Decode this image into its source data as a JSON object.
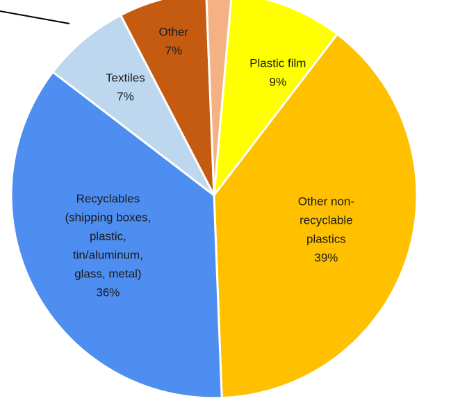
{
  "chart_data": {
    "type": "pie",
    "title": "",
    "slices": [
      {
        "label": "Plastic film",
        "value": 9,
        "value_label": "9%",
        "color": "#FFFF00"
      },
      {
        "label": "Other non-recyclable plastics",
        "value": 39,
        "value_label": "39%",
        "color": "#FFC000"
      },
      {
        "label": "Recyclables (shipping boxes, plastic, tin/aluminum, glass, metal)",
        "value": 36,
        "value_label": "36%",
        "color": "#4E8EF0"
      },
      {
        "label": "Textiles",
        "value": 7,
        "value_label": "7%",
        "color": "#BDD7EE"
      },
      {
        "label": "Other",
        "value": 7,
        "value_label": "7%",
        "color": "#C55A11"
      },
      {
        "label": "",
        "value": 2,
        "value_label": "",
        "color": "#F4B183"
      }
    ],
    "legend": "none",
    "data_labels": "inside"
  }
}
